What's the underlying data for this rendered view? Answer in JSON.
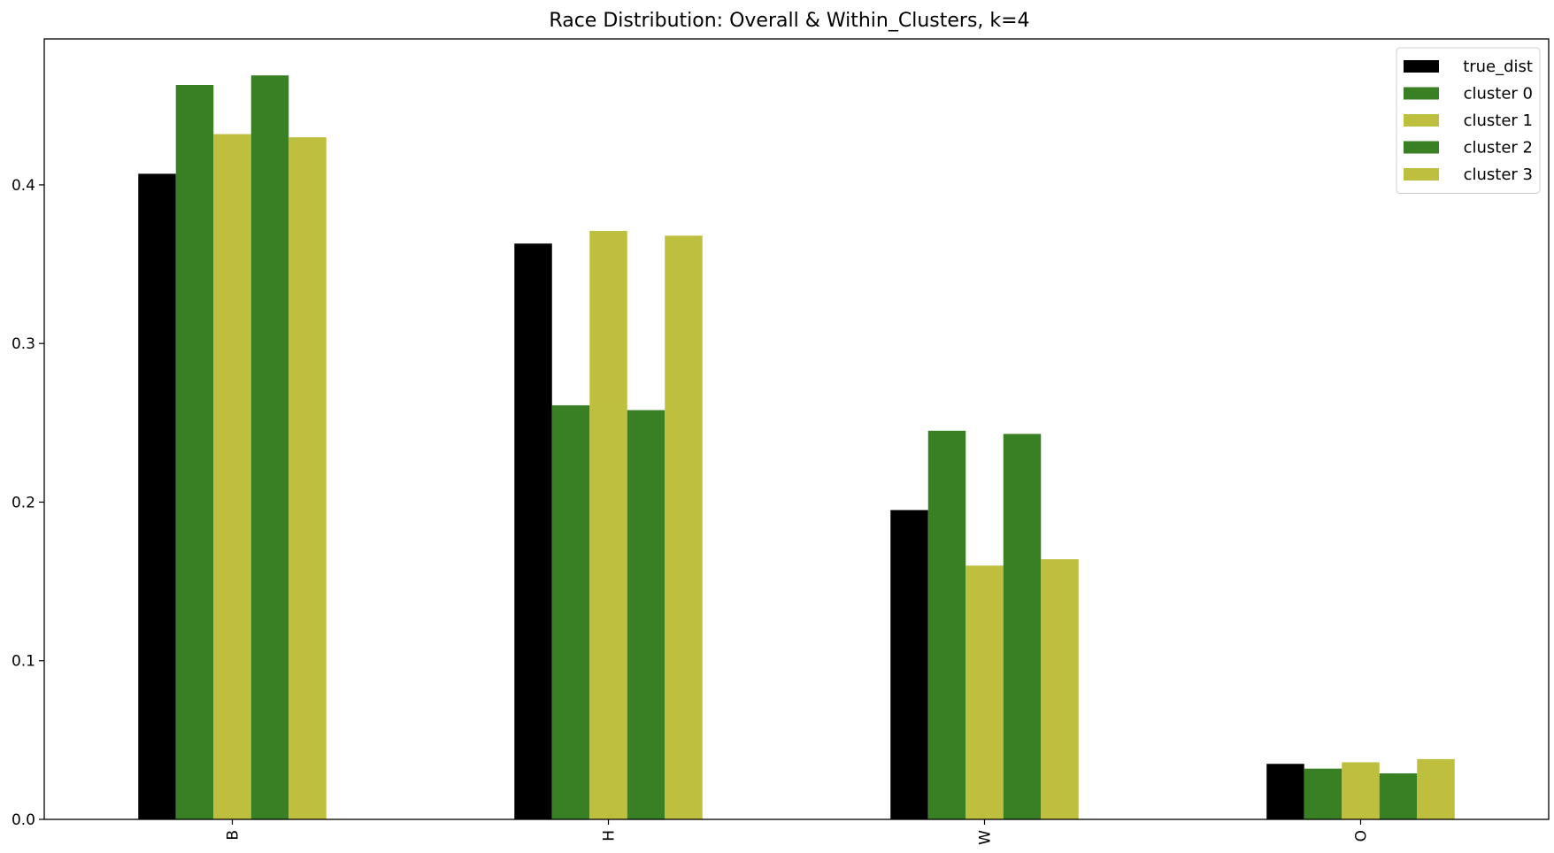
{
  "chart_data": {
    "type": "bar",
    "title": "Race Distribution: Overall & Within_Clusters, k=4",
    "xlabel": "",
    "ylabel": "",
    "categories": [
      "B",
      "H",
      "W",
      "O"
    ],
    "series": [
      {
        "name": "true_dist",
        "color": "#000000",
        "values": [
          0.407,
          0.363,
          0.195,
          0.035
        ]
      },
      {
        "name": "cluster 0",
        "color": "#388023",
        "values": [
          0.463,
          0.261,
          0.245,
          0.032
        ]
      },
      {
        "name": "cluster 1",
        "color": "#bfbf3f",
        "values": [
          0.432,
          0.371,
          0.16,
          0.036
        ]
      },
      {
        "name": "cluster 2",
        "color": "#388023",
        "values": [
          0.469,
          0.258,
          0.243,
          0.029
        ]
      },
      {
        "name": "cluster 3",
        "color": "#bfbf3f",
        "values": [
          0.43,
          0.368,
          0.164,
          0.038
        ]
      }
    ],
    "ylim": [
      0,
      0.492
    ],
    "yticks": [
      0.0,
      0.1,
      0.2,
      0.3,
      0.4
    ],
    "ytick_labels": [
      "0.0",
      "0.1",
      "0.2",
      "0.3",
      "0.4"
    ],
    "legend": "top-right",
    "grid": false,
    "x_tick_rotation": "vertical"
  }
}
